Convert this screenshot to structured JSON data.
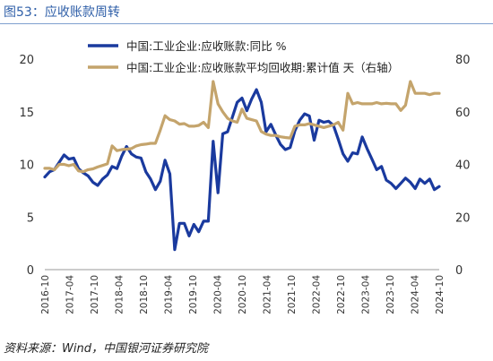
{
  "header": {
    "title": "图53：应收账款周转"
  },
  "footer": {
    "source": "资料来源：Wind，中国银河证券研究院"
  },
  "chart_data": {
    "type": "line",
    "x_ticks": [
      "2016-10",
      "2017-04",
      "2017-10",
      "2018-04",
      "2018-10",
      "2019-04",
      "2019-10",
      "2020-04",
      "2020-10",
      "2021-04",
      "2021-10",
      "2022-04",
      "2022-10",
      "2023-04",
      "2023-10",
      "2024-04",
      "2024-10"
    ],
    "y_left": {
      "ticks": [
        "0",
        "5",
        "10",
        "15",
        "20"
      ],
      "ylim": [
        0,
        20
      ]
    },
    "y_right": {
      "ticks": [
        "0",
        "20",
        "40",
        "60",
        "80"
      ],
      "ylim": [
        0,
        80
      ]
    },
    "series": [
      {
        "name": "中国:工业企业:应收账款:同比 %",
        "axis": "left",
        "color": "#1a3a9e",
        "points": [
          [
            0,
            8.8
          ],
          [
            1,
            9.3
          ],
          [
            2,
            9.5
          ],
          [
            3,
            10.2
          ],
          [
            4,
            10.9
          ],
          [
            5,
            10.5
          ],
          [
            6,
            10.6
          ],
          [
            7,
            9.6
          ],
          [
            8,
            9.2
          ],
          [
            9,
            8.9
          ],
          [
            10,
            8.3
          ],
          [
            11,
            8.0
          ],
          [
            12,
            8.6
          ],
          [
            13,
            9.0
          ],
          [
            14,
            9.8
          ],
          [
            15,
            9.6
          ],
          [
            16,
            10.8
          ],
          [
            17,
            11.7
          ],
          [
            18,
            11.0
          ],
          [
            19,
            10.7
          ],
          [
            20,
            10.6
          ],
          [
            21,
            9.3
          ],
          [
            22,
            8.6
          ],
          [
            23,
            7.6
          ],
          [
            24,
            8.4
          ],
          [
            25,
            10.4
          ],
          [
            26,
            9.1
          ],
          [
            27,
            1.9
          ],
          [
            28,
            4.4
          ],
          [
            29,
            4.4
          ],
          [
            30,
            3.2
          ],
          [
            31,
            4.3
          ],
          [
            32,
            3.6
          ],
          [
            33,
            4.6
          ],
          [
            34,
            4.6
          ],
          [
            35,
            12.2
          ],
          [
            36,
            7.3
          ],
          [
            37,
            12.9
          ],
          [
            38,
            13.1
          ],
          [
            39,
            14.5
          ],
          [
            40,
            15.9
          ],
          [
            41,
            16.3
          ],
          [
            42,
            15.1
          ],
          [
            43,
            16.2
          ],
          [
            44,
            17.1
          ],
          [
            45,
            15.9
          ],
          [
            46,
            13.1
          ],
          [
            47,
            13.8
          ],
          [
            48,
            12.8
          ],
          [
            49,
            11.9
          ],
          [
            50,
            11.4
          ],
          [
            51,
            11.6
          ],
          [
            52,
            13.2
          ],
          [
            53,
            14.2
          ],
          [
            54,
            14.8
          ],
          [
            55,
            14.6
          ],
          [
            56,
            12.3
          ],
          [
            57,
            14.2
          ],
          [
            58,
            14.0
          ],
          [
            59,
            14.1
          ],
          [
            60,
            13.7
          ],
          [
            61,
            12.4
          ],
          [
            62,
            11.0
          ],
          [
            63,
            10.3
          ],
          [
            64,
            11.1
          ],
          [
            65,
            11.0
          ],
          [
            66,
            12.6
          ],
          [
            67,
            11.5
          ],
          [
            68,
            10.5
          ],
          [
            69,
            9.5
          ],
          [
            70,
            9.8
          ],
          [
            71,
            8.5
          ],
          [
            72,
            8.2
          ],
          [
            73,
            7.7
          ],
          [
            74,
            8.2
          ],
          [
            75,
            8.7
          ],
          [
            76,
            8.3
          ],
          [
            77,
            7.7
          ],
          [
            78,
            8.6
          ],
          [
            79,
            8.2
          ],
          [
            80,
            8.6
          ],
          [
            81,
            7.6
          ],
          [
            82,
            7.9
          ]
        ]
      },
      {
        "name": "中国:工业企业:应收账款平均回收期:累计值 天（右轴）",
        "axis": "right",
        "color": "#c4a46c",
        "points": [
          [
            0,
            38.5
          ],
          [
            1,
            38.5
          ],
          [
            2,
            38.0
          ],
          [
            3,
            40.0
          ],
          [
            4,
            40.0
          ],
          [
            5,
            39.5
          ],
          [
            6,
            40.0
          ],
          [
            7,
            37.5
          ],
          [
            8,
            37.2
          ],
          [
            9,
            38.0
          ],
          [
            10,
            38.3
          ],
          [
            11,
            39.0
          ],
          [
            12,
            39.6
          ],
          [
            13,
            40.2
          ],
          [
            14,
            47.0
          ],
          [
            15,
            45.2
          ],
          [
            16,
            45.6
          ],
          [
            17,
            45.8
          ],
          [
            18,
            46.0
          ],
          [
            19,
            47.0
          ],
          [
            20,
            47.5
          ],
          [
            21,
            47.7
          ],
          [
            22,
            48.0
          ],
          [
            23,
            48.0
          ],
          [
            24,
            53.0
          ],
          [
            25,
            58.5
          ],
          [
            26,
            57.0
          ],
          [
            27,
            56.5
          ],
          [
            28,
            55.3
          ],
          [
            29,
            55.5
          ],
          [
            30,
            54.5
          ],
          [
            31,
            54.5
          ],
          [
            32,
            54.8
          ],
          [
            33,
            56.0
          ],
          [
            34,
            54.0
          ],
          [
            35,
            71.5
          ],
          [
            36,
            63.0
          ],
          [
            37,
            60.0
          ],
          [
            38,
            57.5
          ],
          [
            39,
            56.5
          ],
          [
            40,
            56.0
          ],
          [
            41,
            61.0
          ],
          [
            42,
            57.5
          ],
          [
            43,
            57.0
          ],
          [
            44,
            56.5
          ],
          [
            45,
            52.5
          ],
          [
            46,
            51.5
          ],
          [
            47,
            51.0
          ],
          [
            48,
            51.0
          ],
          [
            49,
            50.5
          ],
          [
            50,
            50.2
          ],
          [
            51,
            50.0
          ],
          [
            52,
            54.5
          ],
          [
            53,
            55.0
          ],
          [
            54,
            55.0
          ],
          [
            55,
            55.5
          ],
          [
            56,
            55.0
          ],
          [
            57,
            54.5
          ],
          [
            58,
            54.0
          ],
          [
            59,
            54.5
          ],
          [
            60,
            55.0
          ],
          [
            61,
            56.0
          ],
          [
            62,
            53.0
          ],
          [
            63,
            67.0
          ],
          [
            64,
            63.0
          ],
          [
            65,
            63.5
          ],
          [
            66,
            63.0
          ],
          [
            67,
            63.0
          ],
          [
            68,
            63.0
          ],
          [
            69,
            63.5
          ],
          [
            70,
            63.0
          ],
          [
            71,
            63.2
          ],
          [
            72,
            63.0
          ],
          [
            73,
            63.0
          ],
          [
            74,
            60.5
          ],
          [
            75,
            62.5
          ],
          [
            76,
            71.5
          ],
          [
            77,
            67.0
          ],
          [
            78,
            67.0
          ],
          [
            79,
            67.0
          ],
          [
            80,
            66.5
          ],
          [
            81,
            67.0
          ],
          [
            82,
            67.0
          ]
        ]
      }
    ],
    "legend_position": "top-center",
    "grid": false
  }
}
